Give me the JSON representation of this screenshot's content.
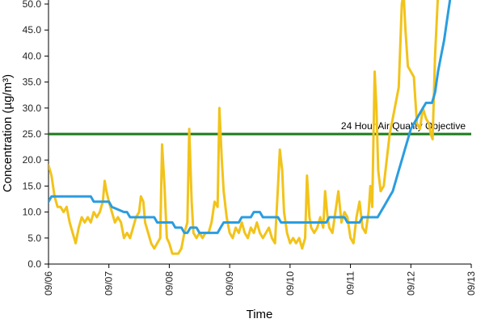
{
  "chart_data": {
    "type": "line",
    "xlabel": "Time",
    "ylabel": "Concentration (µg/m³)",
    "x_ticks": [
      "09/06",
      "09/07",
      "09/08",
      "09/09",
      "09/10",
      "09/11",
      "09/12",
      "09/13"
    ],
    "xlim": [
      0,
      7
    ],
    "y_ticks": [
      "0.0",
      "5.0",
      "10.0",
      "15.0",
      "20.0",
      "25.0",
      "30.0",
      "35.0",
      "40.0",
      "45.0",
      "50.0"
    ],
    "ylim": [
      0,
      50
    ],
    "grid": false,
    "legend": "none",
    "reference_lines": [
      {
        "label": "24 Hour Air Quality Objective",
        "y": 25,
        "color": "#1a7a1a"
      }
    ],
    "series": [
      {
        "color": "#f2c31a",
        "description": "hourly",
        "points": [
          [
            0.0,
            19
          ],
          [
            0.05,
            17
          ],
          [
            0.1,
            13
          ],
          [
            0.15,
            11
          ],
          [
            0.2,
            11
          ],
          [
            0.25,
            10
          ],
          [
            0.3,
            11
          ],
          [
            0.35,
            8
          ],
          [
            0.4,
            6
          ],
          [
            0.45,
            4
          ],
          [
            0.5,
            7
          ],
          [
            0.55,
            9
          ],
          [
            0.6,
            8
          ],
          [
            0.65,
            9
          ],
          [
            0.7,
            8
          ],
          [
            0.75,
            10
          ],
          [
            0.8,
            9
          ],
          [
            0.85,
            10
          ],
          [
            0.9,
            12
          ],
          [
            0.93,
            16
          ],
          [
            0.96,
            14
          ],
          [
            1.0,
            12
          ],
          [
            1.05,
            10
          ],
          [
            1.1,
            8
          ],
          [
            1.15,
            9
          ],
          [
            1.2,
            8
          ],
          [
            1.25,
            5
          ],
          [
            1.3,
            6
          ],
          [
            1.35,
            5
          ],
          [
            1.4,
            7
          ],
          [
            1.45,
            9
          ],
          [
            1.5,
            10
          ],
          [
            1.53,
            13
          ],
          [
            1.57,
            12
          ],
          [
            1.6,
            8
          ],
          [
            1.65,
            6
          ],
          [
            1.7,
            4
          ],
          [
            1.75,
            3
          ],
          [
            1.8,
            4
          ],
          [
            1.85,
            5
          ],
          [
            1.88,
            23
          ],
          [
            1.92,
            15
          ],
          [
            1.96,
            5
          ],
          [
            2.0,
            4
          ],
          [
            2.05,
            2
          ],
          [
            2.1,
            2
          ],
          [
            2.15,
            2
          ],
          [
            2.2,
            3
          ],
          [
            2.25,
            6
          ],
          [
            2.3,
            8
          ],
          [
            2.33,
            26
          ],
          [
            2.37,
            12
          ],
          [
            2.4,
            6
          ],
          [
            2.45,
            5
          ],
          [
            2.5,
            6
          ],
          [
            2.55,
            5
          ],
          [
            2.6,
            6
          ],
          [
            2.65,
            6
          ],
          [
            2.7,
            8
          ],
          [
            2.75,
            12
          ],
          [
            2.8,
            11
          ],
          [
            2.83,
            30
          ],
          [
            2.87,
            20
          ],
          [
            2.9,
            14
          ],
          [
            2.95,
            9
          ],
          [
            3.0,
            6
          ],
          [
            3.05,
            5
          ],
          [
            3.1,
            7
          ],
          [
            3.15,
            6
          ],
          [
            3.2,
            8
          ],
          [
            3.25,
            6
          ],
          [
            3.3,
            5
          ],
          [
            3.35,
            7
          ],
          [
            3.4,
            6
          ],
          [
            3.45,
            8
          ],
          [
            3.5,
            6
          ],
          [
            3.55,
            5
          ],
          [
            3.6,
            6
          ],
          [
            3.65,
            7
          ],
          [
            3.7,
            5
          ],
          [
            3.75,
            4
          ],
          [
            3.8,
            15
          ],
          [
            3.83,
            22
          ],
          [
            3.87,
            18
          ],
          [
            3.9,
            10
          ],
          [
            3.95,
            6
          ],
          [
            4.0,
            4
          ],
          [
            4.05,
            5
          ],
          [
            4.1,
            4
          ],
          [
            4.15,
            5
          ],
          [
            4.2,
            3
          ],
          [
            4.25,
            5
          ],
          [
            4.28,
            17
          ],
          [
            4.32,
            9
          ],
          [
            4.35,
            7
          ],
          [
            4.4,
            6
          ],
          [
            4.45,
            7
          ],
          [
            4.5,
            9
          ],
          [
            4.55,
            7
          ],
          [
            4.58,
            14
          ],
          [
            4.62,
            9
          ],
          [
            4.65,
            7
          ],
          [
            4.7,
            6
          ],
          [
            4.75,
            10
          ],
          [
            4.8,
            14
          ],
          [
            4.85,
            8
          ],
          [
            4.9,
            10
          ],
          [
            4.95,
            9
          ],
          [
            5.0,
            5
          ],
          [
            5.05,
            4
          ],
          [
            5.1,
            9
          ],
          [
            5.15,
            12
          ],
          [
            5.2,
            7
          ],
          [
            5.25,
            6
          ],
          [
            5.3,
            10
          ],
          [
            5.33,
            15
          ],
          [
            5.36,
            11
          ],
          [
            5.4,
            37
          ],
          [
            5.43,
            30
          ],
          [
            5.46,
            18
          ],
          [
            5.5,
            14
          ],
          [
            5.55,
            15
          ],
          [
            5.6,
            20
          ],
          [
            5.65,
            25
          ],
          [
            5.7,
            28
          ],
          [
            5.75,
            31
          ],
          [
            5.8,
            34
          ],
          [
            5.85,
            50
          ],
          [
            5.88,
            52
          ],
          [
            5.91,
            45
          ],
          [
            5.95,
            38
          ],
          [
            6.0,
            37
          ],
          [
            6.05,
            36
          ],
          [
            6.1,
            27
          ],
          [
            6.15,
            26
          ],
          [
            6.2,
            30
          ],
          [
            6.25,
            28
          ],
          [
            6.3,
            27
          ],
          [
            6.33,
            25
          ],
          [
            6.36,
            24
          ],
          [
            6.4,
            40
          ],
          [
            6.45,
            52
          ]
        ]
      },
      {
        "color": "#2a9de0",
        "description": "24-hour average",
        "points": [
          [
            0.0,
            12
          ],
          [
            0.05,
            13
          ],
          [
            0.5,
            13
          ],
          [
            0.7,
            13
          ],
          [
            0.75,
            12
          ],
          [
            1.0,
            12
          ],
          [
            1.05,
            11
          ],
          [
            1.25,
            10
          ],
          [
            1.3,
            10
          ],
          [
            1.35,
            9
          ],
          [
            1.75,
            9
          ],
          [
            1.8,
            8
          ],
          [
            2.05,
            8
          ],
          [
            2.1,
            7
          ],
          [
            2.2,
            7
          ],
          [
            2.25,
            6
          ],
          [
            2.3,
            6
          ],
          [
            2.35,
            7
          ],
          [
            2.45,
            7
          ],
          [
            2.5,
            6
          ],
          [
            2.8,
            6
          ],
          [
            2.85,
            7
          ],
          [
            2.9,
            8
          ],
          [
            3.15,
            8
          ],
          [
            3.2,
            9
          ],
          [
            3.35,
            9
          ],
          [
            3.4,
            10
          ],
          [
            3.5,
            10
          ],
          [
            3.55,
            9
          ],
          [
            3.8,
            9
          ],
          [
            3.85,
            8
          ],
          [
            4.6,
            8
          ],
          [
            4.65,
            9
          ],
          [
            4.9,
            9
          ],
          [
            4.95,
            8
          ],
          [
            5.15,
            8
          ],
          [
            5.2,
            9
          ],
          [
            5.45,
            9
          ],
          [
            5.5,
            10
          ],
          [
            5.55,
            11
          ],
          [
            5.6,
            12
          ],
          [
            5.65,
            13
          ],
          [
            5.7,
            14
          ],
          [
            5.75,
            16
          ],
          [
            5.8,
            18
          ],
          [
            5.85,
            20
          ],
          [
            5.9,
            22
          ],
          [
            5.95,
            24
          ],
          [
            6.0,
            26
          ],
          [
            6.05,
            27
          ],
          [
            6.1,
            28
          ],
          [
            6.15,
            29
          ],
          [
            6.2,
            30
          ],
          [
            6.25,
            31
          ],
          [
            6.3,
            31
          ],
          [
            6.35,
            31
          ],
          [
            6.4,
            33
          ],
          [
            6.45,
            37
          ],
          [
            6.5,
            40
          ],
          [
            6.55,
            43
          ],
          [
            6.6,
            47
          ],
          [
            6.65,
            51
          ]
        ]
      }
    ]
  }
}
